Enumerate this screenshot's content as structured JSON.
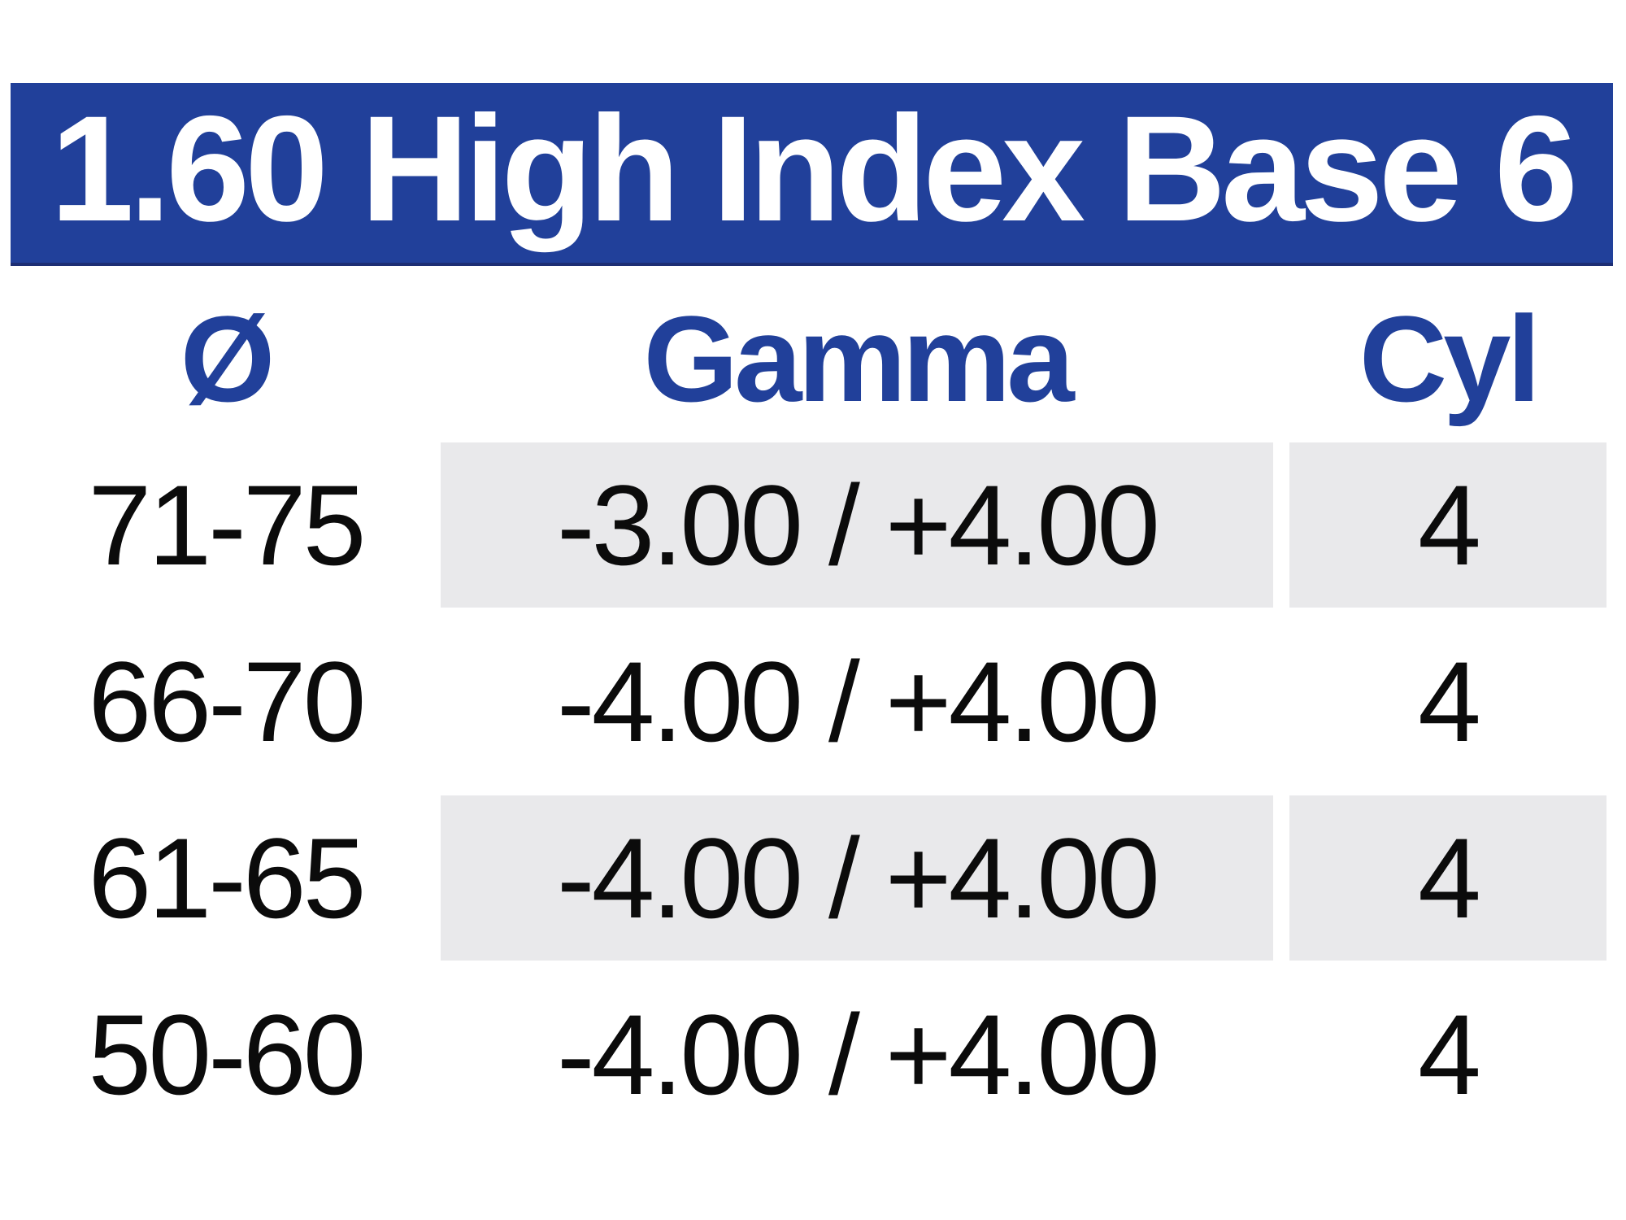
{
  "title": "1.60 High Index Base 6",
  "table": {
    "columns": [
      {
        "id": "diameter",
        "label": "Ø"
      },
      {
        "id": "gamma",
        "label": "Gamma"
      },
      {
        "id": "cyl",
        "label": "Cyl"
      }
    ],
    "rows": [
      {
        "diameter": "71-75",
        "gamma": "-3.00 / +4.00",
        "cyl": "4"
      },
      {
        "diameter": "66-70",
        "gamma": "-4.00 / +4.00",
        "cyl": "4"
      },
      {
        "diameter": "61-65",
        "gamma": "-4.00 / +4.00",
        "cyl": "4"
      },
      {
        "diameter": "50-60",
        "gamma": "-4.00 / +4.00",
        "cyl": "4"
      }
    ]
  },
  "colors": {
    "banner_blue": "#21409A",
    "header_text_blue": "#21409A",
    "shaded_cell_grey": "#E9E9EB",
    "title_text_white": "#FFFFFF",
    "body_text_black": "#0B0B0B"
  }
}
